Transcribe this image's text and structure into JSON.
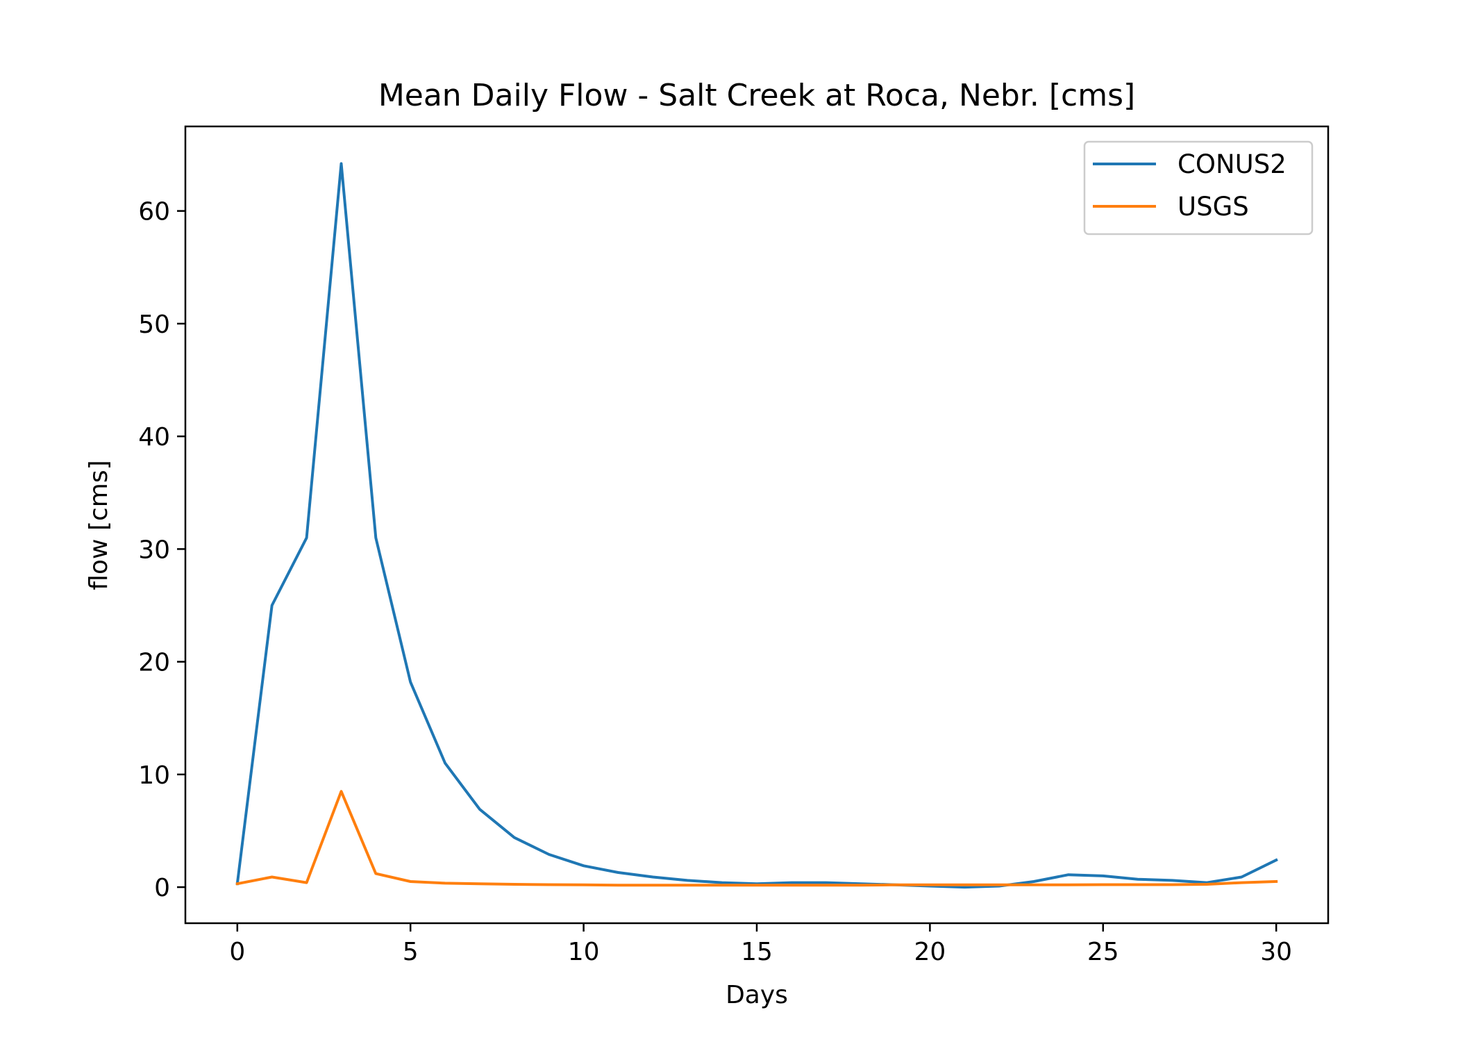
{
  "chart_data": {
    "type": "line",
    "title": "Mean Daily Flow - Salt Creek at Roca, Nebr. [cms]",
    "xlabel": "Days",
    "ylabel": "flow [cms]",
    "xlim": [
      -1.5,
      31.5
    ],
    "ylim": [
      -3.2,
      67.5
    ],
    "xticks": [
      0,
      5,
      10,
      15,
      20,
      25,
      30
    ],
    "yticks": [
      0,
      10,
      20,
      30,
      40,
      50,
      60
    ],
    "grid": false,
    "legend_position": "top-right",
    "x": [
      0,
      1,
      2,
      3,
      4,
      5,
      6,
      7,
      8,
      9,
      10,
      11,
      12,
      13,
      14,
      15,
      16,
      17,
      18,
      19,
      20,
      21,
      22,
      23,
      24,
      25,
      26,
      27,
      28,
      29,
      30
    ],
    "series": [
      {
        "name": "CONUS2",
        "color": "#1f77b4",
        "values": [
          0.3,
          25.0,
          31.0,
          64.2,
          31.0,
          18.2,
          11.0,
          6.9,
          4.4,
          2.9,
          1.9,
          1.3,
          0.9,
          0.6,
          0.4,
          0.3,
          0.4,
          0.4,
          0.3,
          0.2,
          0.1,
          0.0,
          0.1,
          0.5,
          1.1,
          1.0,
          0.7,
          0.6,
          0.4,
          0.9,
          2.4
        ]
      },
      {
        "name": "USGS",
        "color": "#ff7f0e",
        "values": [
          0.3,
          0.9,
          0.4,
          8.5,
          1.2,
          0.5,
          0.35,
          0.3,
          0.25,
          0.22,
          0.2,
          0.18,
          0.18,
          0.18,
          0.18,
          0.18,
          0.18,
          0.18,
          0.18,
          0.2,
          0.2,
          0.2,
          0.2,
          0.2,
          0.2,
          0.22,
          0.22,
          0.22,
          0.25,
          0.4,
          0.5
        ]
      }
    ]
  }
}
